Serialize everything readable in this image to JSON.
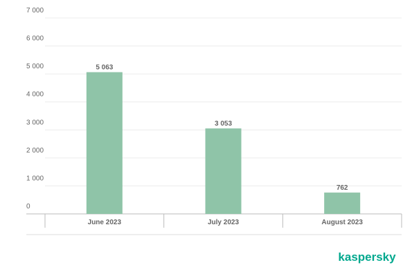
{
  "chart_data": {
    "type": "bar",
    "categories": [
      "June 2023",
      "July 2023",
      "August 2023"
    ],
    "values": [
      5063,
      3053,
      762
    ],
    "value_labels": [
      "5 063",
      "3 053",
      "762"
    ],
    "color": "#8fc4a8",
    "ylim": [
      0,
      7000
    ],
    "yticks": [
      0,
      {
        "value": 1000,
        "label": "1 000"
      },
      {
        "value": 2000,
        "label": "2 000"
      },
      {
        "value": 3000,
        "label": "3 000"
      },
      {
        "value": 4000,
        "label": "4 000"
      },
      {
        "value": 5000,
        "label": "5 000"
      },
      {
        "value": 6000,
        "label": "6 000"
      },
      {
        "value": 7000,
        "label": "7 000"
      }
    ],
    "grid": true
  },
  "brand": "kaspersky"
}
